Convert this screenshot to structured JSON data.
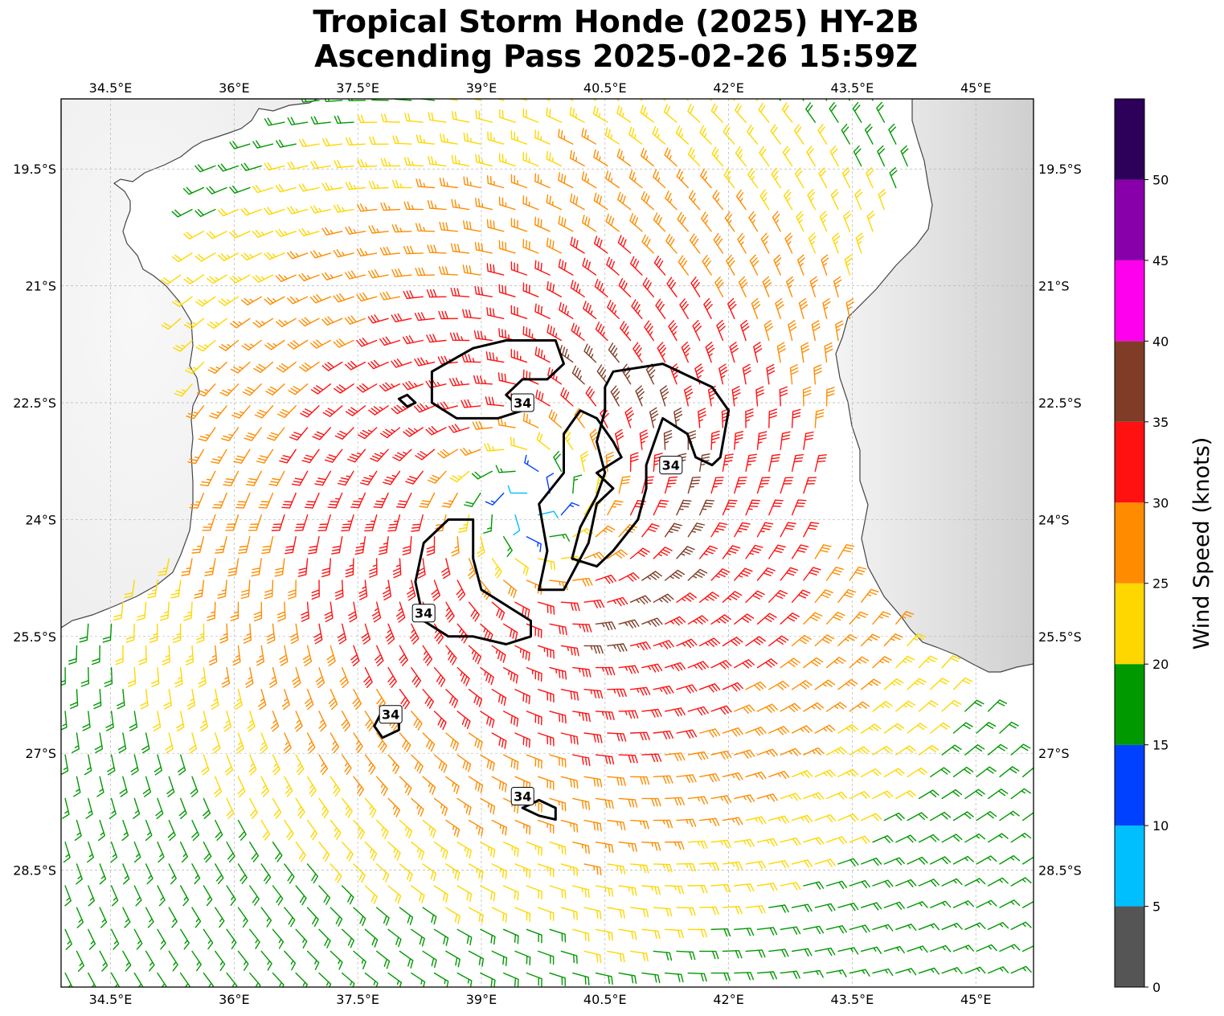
{
  "title": {
    "line1": "Tropical Storm Honde (2025) HY-2B",
    "line2": "Ascending Pass 2025-02-26 15:59Z"
  },
  "map": {
    "lon_range": [
      33.9,
      45.7
    ],
    "lat_range": [
      -30.0,
      -18.6
    ],
    "lon_ticks": [
      34.5,
      36,
      37.5,
      39,
      40.5,
      42,
      43.5,
      45
    ],
    "lon_tick_labels": [
      "34.5°E",
      "36°E",
      "37.5°E",
      "39°E",
      "40.5°E",
      "42°E",
      "43.5°E",
      "45°E"
    ],
    "lat_ticks": [
      -19.5,
      -21,
      -22.5,
      -24,
      -25.5,
      -27,
      -28.5
    ],
    "lat_tick_labels": [
      "19.5°S",
      "21°S",
      "22.5°S",
      "24°S",
      "25.5°S",
      "27°S",
      "28.5°S"
    ],
    "gridlines": true,
    "features": [
      "Mozambique coastline (west)",
      "Madagascar coastline (east)",
      "grayscale land elevation"
    ],
    "storm_center": {
      "lon": 39.6,
      "lat": -23.8
    },
    "swath_ranges": [
      {
        "lat": -18.6,
        "lon_min": 37.0,
        "lon_max": 43.9
      },
      {
        "lat": -19.5,
        "lon_min": 35.6,
        "lon_max": 44.2
      },
      {
        "lat": -21.0,
        "lon_min": 35.2,
        "lon_max": 43.6
      },
      {
        "lat": -22.5,
        "lon_min": 35.5,
        "lon_max": 43.2
      },
      {
        "lat": -24.0,
        "lon_min": 35.6,
        "lon_max": 43.0
      },
      {
        "lat": -25.5,
        "lon_min": 33.9,
        "lon_max": 44.2
      },
      {
        "lat": -27.0,
        "lon_min": 33.9,
        "lon_max": 45.7
      },
      {
        "lat": -28.5,
        "lon_min": 33.9,
        "lon_max": 45.7
      },
      {
        "lat": -30.0,
        "lon_min": 33.9,
        "lon_max": 45.7
      }
    ],
    "wind_field_profile": [
      {
        "r_deg": 0.0,
        "kt": 4
      },
      {
        "r_deg": 0.4,
        "kt": 14
      },
      {
        "r_deg": 0.8,
        "kt": 24
      },
      {
        "r_deg": 1.2,
        "kt": 30
      },
      {
        "r_deg": 1.8,
        "kt": 34
      },
      {
        "r_deg": 2.5,
        "kt": 32
      },
      {
        "r_deg": 3.5,
        "kt": 28
      },
      {
        "r_deg": 4.5,
        "kt": 24
      },
      {
        "r_deg": 5.5,
        "kt": 19
      },
      {
        "r_deg": 7.0,
        "kt": 15
      }
    ],
    "contour_34kt": {
      "label": "34",
      "labels_at": [
        {
          "lon": 39.5,
          "lat": -22.5
        },
        {
          "lon": 41.3,
          "lat": -23.3
        },
        {
          "lon": 38.3,
          "lat": -25.2
        },
        {
          "lon": 37.9,
          "lat": -26.5
        },
        {
          "lon": 39.5,
          "lat": -27.55
        }
      ],
      "regions": [
        [
          [
            39.3,
            -21.7
          ],
          [
            39.9,
            -21.7
          ],
          [
            40.0,
            -22.0
          ],
          [
            39.8,
            -22.2
          ],
          [
            39.5,
            -22.2
          ],
          [
            39.3,
            -22.4
          ],
          [
            39.5,
            -22.6
          ],
          [
            39.2,
            -22.7
          ],
          [
            38.7,
            -22.7
          ],
          [
            38.4,
            -22.5
          ],
          [
            38.4,
            -22.1
          ],
          [
            38.9,
            -21.8
          ]
        ],
        [
          [
            38.0,
            -22.45
          ],
          [
            38.1,
            -22.4
          ],
          [
            38.2,
            -22.5
          ],
          [
            38.1,
            -22.55
          ]
        ],
        [
          [
            40.2,
            -22.6
          ],
          [
            40.4,
            -22.7
          ],
          [
            40.6,
            -23.0
          ],
          [
            40.7,
            -23.2
          ],
          [
            40.4,
            -23.4
          ],
          [
            40.6,
            -23.6
          ],
          [
            40.4,
            -23.8
          ],
          [
            40.3,
            -24.3
          ],
          [
            40.1,
            -24.7
          ],
          [
            40.0,
            -24.9
          ],
          [
            39.7,
            -24.9
          ],
          [
            39.8,
            -24.4
          ],
          [
            39.7,
            -23.8
          ],
          [
            40.0,
            -23.4
          ],
          [
            40.0,
            -22.9
          ]
        ],
        [
          [
            40.6,
            -22.1
          ],
          [
            41.2,
            -22.0
          ],
          [
            41.8,
            -22.3
          ],
          [
            42.0,
            -22.6
          ],
          [
            41.9,
            -23.2
          ],
          [
            41.8,
            -23.3
          ],
          [
            41.6,
            -23.2
          ],
          [
            41.5,
            -22.9
          ],
          [
            41.2,
            -22.7
          ],
          [
            41.1,
            -23.0
          ],
          [
            41.0,
            -23.3
          ],
          [
            41.0,
            -23.6
          ],
          [
            40.9,
            -24.0
          ],
          [
            40.6,
            -24.4
          ],
          [
            40.4,
            -24.6
          ],
          [
            40.1,
            -24.5
          ],
          [
            40.2,
            -24.1
          ],
          [
            40.4,
            -23.7
          ],
          [
            40.5,
            -23.4
          ],
          [
            40.4,
            -23.0
          ],
          [
            40.5,
            -22.6
          ],
          [
            40.5,
            -22.3
          ]
        ],
        [
          [
            38.6,
            -24.0
          ],
          [
            38.9,
            -24.0
          ],
          [
            38.9,
            -24.5
          ],
          [
            39.0,
            -24.9
          ],
          [
            39.3,
            -25.1
          ],
          [
            39.6,
            -25.3
          ],
          [
            39.6,
            -25.5
          ],
          [
            39.3,
            -25.6
          ],
          [
            38.9,
            -25.5
          ],
          [
            38.6,
            -25.5
          ],
          [
            38.3,
            -25.3
          ],
          [
            38.2,
            -24.8
          ],
          [
            38.3,
            -24.3
          ]
        ],
        [
          [
            37.8,
            -26.45
          ],
          [
            38.0,
            -26.5
          ],
          [
            38.0,
            -26.7
          ],
          [
            37.8,
            -26.8
          ],
          [
            37.7,
            -26.65
          ]
        ],
        [
          [
            39.7,
            -27.6
          ],
          [
            39.9,
            -27.7
          ],
          [
            39.9,
            -27.85
          ],
          [
            39.7,
            -27.8
          ],
          [
            39.5,
            -27.7
          ]
        ]
      ]
    }
  },
  "colorbar": {
    "title": "Wind Speed (knots)",
    "bounds": [
      0,
      5,
      10,
      15,
      20,
      25,
      30,
      35,
      40,
      45,
      50,
      55
    ],
    "colors": [
      "#555555",
      "#00bfff",
      "#0040ff",
      "#009900",
      "#ffd700",
      "#ff8c00",
      "#ff1111",
      "#803c26",
      "#ff00ee",
      "#8800aa",
      "#2d0059"
    ],
    "tick_values": [
      0,
      5,
      10,
      15,
      20,
      25,
      30,
      35,
      40,
      45,
      50
    ],
    "tick_labels": [
      "0",
      "5",
      "10",
      "15",
      "20",
      "25",
      "30",
      "35",
      "40",
      "45",
      "50"
    ]
  }
}
